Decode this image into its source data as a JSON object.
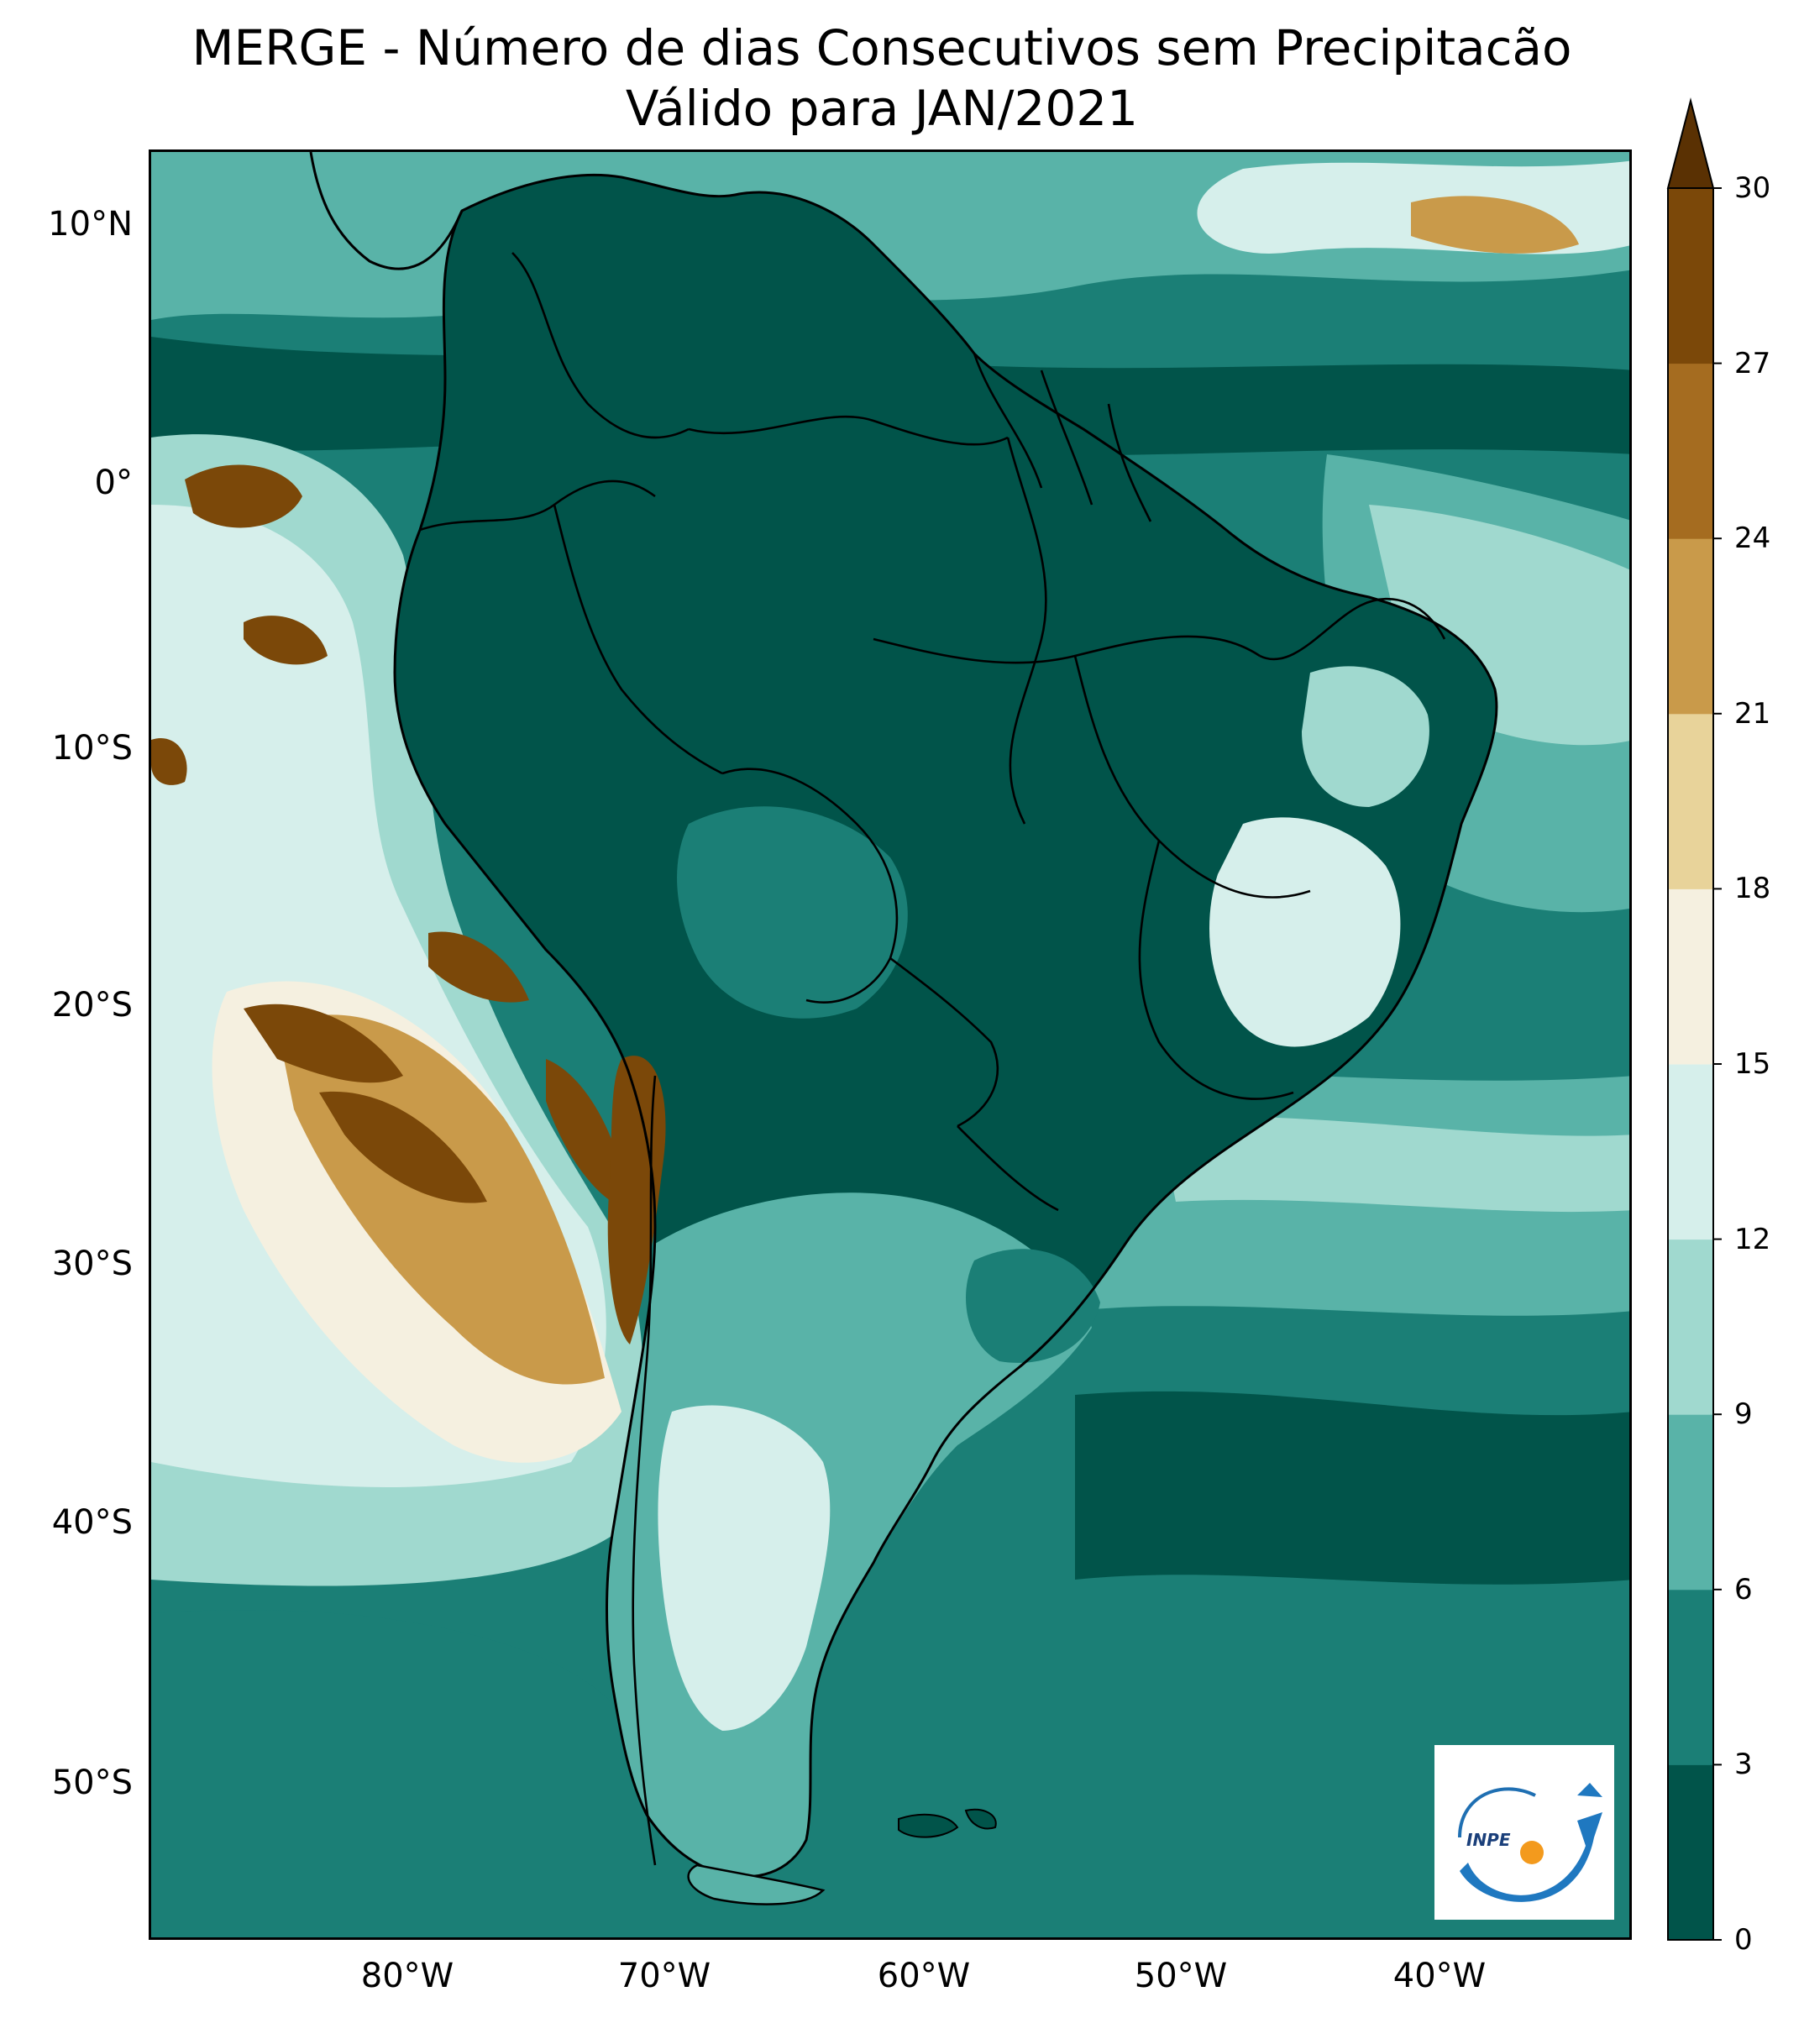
{
  "title": {
    "line1": "MERGE - Número de dias Consecutivos sem Precipitacão",
    "line2": "Válido para JAN/2021"
  },
  "lat_ticks": [
    "10°N",
    "0°",
    "10°S",
    "20°S",
    "30°S",
    "40°S",
    "50°S"
  ],
  "lon_ticks": [
    "80°W",
    "70°W",
    "60°W",
    "50°W",
    "40°W"
  ],
  "colorbar": {
    "ticks": [
      "0",
      "3",
      "6",
      "9",
      "12",
      "15",
      "18",
      "21",
      "24",
      "27",
      "30"
    ],
    "colors": [
      "#01544a",
      "#1b7f76",
      "#59b3a8",
      "#a0d9cf",
      "#d6efeb",
      "#f5f0e0",
      "#e8d39a",
      "#c99a4a",
      "#a56c20",
      "#7b4809",
      "#5a3103"
    ]
  },
  "logo": {
    "text": "INPE"
  },
  "colors": {
    "ocean_deep": "#1b7f76",
    "land_wet": "#01544a",
    "dry_high": "#7b4809"
  }
}
